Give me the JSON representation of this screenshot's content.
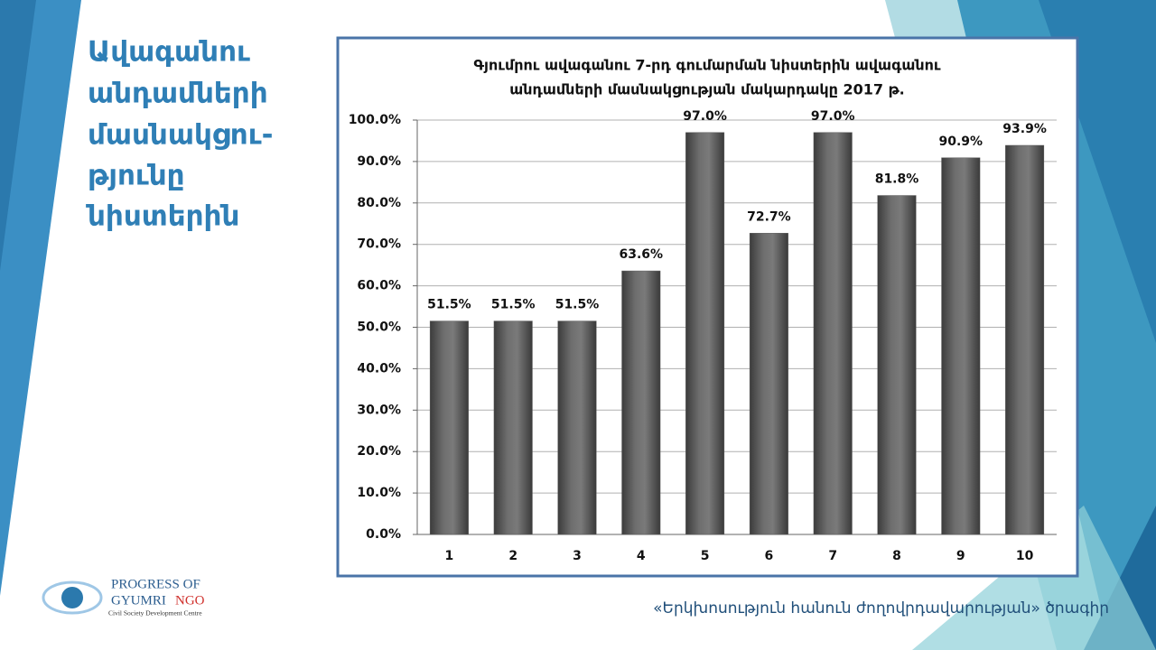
{
  "slide": {
    "heading": [
      "Ավագանու",
      "անդամների",
      "մասնակցու-",
      "թյունը",
      "նիստերին"
    ],
    "logo": {
      "line1": "PROGRESS OF",
      "line2a": "GYUMRI",
      "line2b": "NGO",
      "line3": "Civil Society Development Centre"
    },
    "footer": "«Երկխոսություն հանուն ժողովրդավարության» ծրագիր"
  },
  "chart_data": {
    "type": "bar",
    "title": [
      "Գյումրու ավագանու 7-րդ գումարման նիստերին ավագանու",
      "անդամների մասնակցության մակարդակը 2017 թ."
    ],
    "categories": [
      "1",
      "2",
      "3",
      "4",
      "5",
      "6",
      "7",
      "8",
      "9",
      "10"
    ],
    "values": [
      51.5,
      51.5,
      51.5,
      63.6,
      97.0,
      72.7,
      97.0,
      81.8,
      90.9,
      93.9
    ],
    "value_labels": [
      "51.5%",
      "51.5%",
      "51.5%",
      "63.6%",
      "97.0%",
      "72.7%",
      "97.0%",
      "81.8%",
      "90.9%",
      "93.9%"
    ],
    "color": "#5a5a5a",
    "ylim": [
      0,
      100
    ],
    "yticks": [
      {
        "value": 0,
        "label": "0.0%"
      },
      {
        "value": 10,
        "label": "10.0%"
      },
      {
        "value": 20,
        "label": "20.0%"
      },
      {
        "value": 30,
        "label": "30.0%"
      },
      {
        "value": 40,
        "label": "40.0%"
      },
      {
        "value": 50,
        "label": "50.0%"
      },
      {
        "value": 60,
        "label": "60.0%"
      },
      {
        "value": 70,
        "label": "70.0%"
      },
      {
        "value": 80,
        "label": "80.0%"
      },
      {
        "value": 90,
        "label": "90.0%"
      },
      {
        "value": 100,
        "label": "100.0%"
      }
    ],
    "grid": true
  }
}
